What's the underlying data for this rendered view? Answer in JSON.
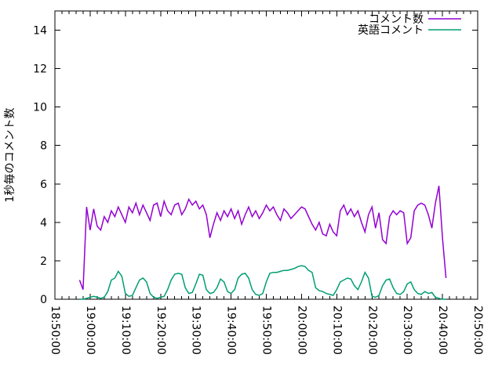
{
  "chart_data": {
    "type": "line",
    "title": "",
    "xlabel": "",
    "ylabel": "1秒毎のコメント数",
    "background_color": "#ffffff",
    "axis_color": "#000000",
    "grid": false,
    "legend_position": "top-right-inside",
    "ylim": [
      0,
      15
    ],
    "y_ticks": [
      0,
      2,
      4,
      6,
      8,
      10,
      12,
      14
    ],
    "x_start_label_time": "18:50:00",
    "x_total_minutes": 120,
    "x_tick_interval_minutes": 10,
    "x_minor_tick_minutes": 2,
    "x_tick_labels": [
      "18:50:00",
      "19:00:00",
      "19:10:00",
      "19:20:00",
      "19:30:00",
      "19:40:00",
      "19:50:00",
      "20:00:00",
      "20:10:00",
      "20:20:00",
      "20:30:00",
      "20:40:00",
      "20:50:00"
    ],
    "series": [
      {
        "name": "コメント数",
        "color": "#9400d3",
        "start": "18:57:00",
        "step_seconds": 60,
        "values": [
          1.0,
          0.5,
          4.8,
          3.6,
          4.7,
          3.8,
          3.6,
          4.3,
          4.0,
          4.6,
          4.3,
          4.8,
          4.4,
          4.0,
          4.8,
          4.5,
          5.0,
          4.4,
          4.9,
          4.5,
          4.1,
          4.9,
          5.0,
          4.3,
          5.1,
          4.6,
          4.4,
          4.9,
          5.0,
          4.4,
          4.7,
          5.2,
          4.9,
          5.1,
          4.7,
          4.9,
          4.4,
          3.2,
          3.9,
          4.5,
          4.1,
          4.6,
          4.3,
          4.7,
          4.2,
          4.6,
          3.9,
          4.4,
          4.8,
          4.3,
          4.6,
          4.2,
          4.5,
          4.9,
          4.6,
          4.8,
          4.4,
          4.1,
          4.7,
          4.5,
          4.2,
          4.4,
          4.6,
          4.8,
          4.7,
          4.3,
          3.9,
          3.6,
          4.0,
          3.4,
          3.3,
          3.9,
          3.5,
          3.3,
          4.6,
          4.9,
          4.4,
          4.7,
          4.3,
          4.6,
          4.0,
          3.5,
          4.4,
          4.8,
          3.7,
          4.5,
          3.1,
          2.9,
          4.3,
          4.6,
          4.4,
          4.6,
          4.5,
          2.9,
          3.2,
          4.6,
          4.9,
          5.0,
          4.9,
          4.4,
          3.7,
          5.0,
          5.9,
          3.2,
          1.1
        ]
      },
      {
        "name": "英語コメント",
        "color": "#009e73",
        "start": "18:57:00",
        "step_seconds": 60,
        "values": [
          0.0,
          0.0,
          0.05,
          0.1,
          0.15,
          0.1,
          0.05,
          0.1,
          0.4,
          1.0,
          1.1,
          1.45,
          1.2,
          0.3,
          0.15,
          0.2,
          0.6,
          1.0,
          1.1,
          0.9,
          0.3,
          0.1,
          0.05,
          0.1,
          0.15,
          0.5,
          1.0,
          1.3,
          1.35,
          1.3,
          0.6,
          0.3,
          0.35,
          0.8,
          1.3,
          1.25,
          0.5,
          0.3,
          0.35,
          0.6,
          1.05,
          0.9,
          0.4,
          0.3,
          0.5,
          1.1,
          1.3,
          1.35,
          1.1,
          0.5,
          0.25,
          0.2,
          0.3,
          0.9,
          1.35,
          1.4,
          1.4,
          1.45,
          1.5,
          1.5,
          1.55,
          1.6,
          1.7,
          1.75,
          1.7,
          1.5,
          1.4,
          0.6,
          0.45,
          0.4,
          0.3,
          0.25,
          0.2,
          0.5,
          0.9,
          1.0,
          1.1,
          1.05,
          0.7,
          0.5,
          0.9,
          1.4,
          1.1,
          0.15,
          0.1,
          0.2,
          0.7,
          1.0,
          1.05,
          0.6,
          0.3,
          0.25,
          0.4,
          0.8,
          0.9,
          0.5,
          0.3,
          0.25,
          0.4,
          0.3,
          0.35,
          0.1,
          0.05,
          0.0,
          0.0
        ]
      }
    ]
  },
  "legend": {
    "items": [
      {
        "label": "コメント数",
        "color": "#9400d3"
      },
      {
        "label": "英語コメント",
        "color": "#009e73"
      }
    ]
  }
}
